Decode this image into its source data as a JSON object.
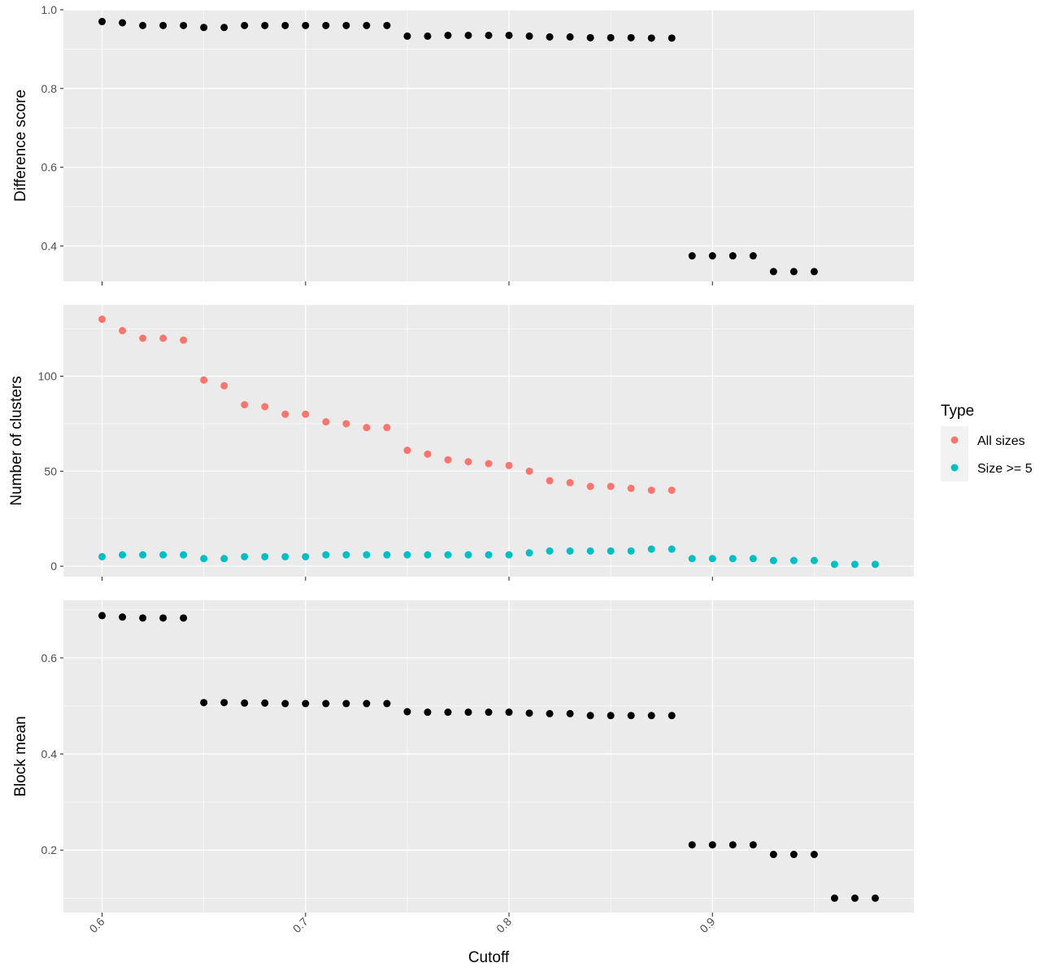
{
  "chart_data": {
    "type": "scatter",
    "xlabel": "Cutoff",
    "xlim": [
      0.581,
      0.999
    ],
    "x_ticks": [
      "0.6",
      "0.7",
      "0.8",
      "0.9"
    ],
    "x_tick_values": [
      0.6,
      0.7,
      0.8,
      0.9
    ],
    "x_minor_breaks": [
      0.65,
      0.75,
      0.85,
      0.95
    ],
    "grid": true,
    "legend": {
      "title": "Type",
      "position": "right",
      "entries": [
        {
          "label": "All sizes",
          "color": "#F8766D"
        },
        {
          "label": "Size >= 5",
          "color": "#00BFC4"
        }
      ]
    },
    "panels": [
      {
        "ylabel": "Difference score",
        "ylim": [
          0.31,
          1.0
        ],
        "y_ticks": [
          "0.4",
          "0.6",
          "0.8",
          "1.0"
        ],
        "y_tick_values": [
          0.4,
          0.6,
          0.8,
          1.0
        ],
        "y_minor_breaks": [
          0.3,
          0.5,
          0.7,
          0.9
        ],
        "series": [
          {
            "color": "#000000",
            "x": [
              0.6,
              0.61,
              0.62,
              0.63,
              0.64,
              0.65,
              0.66,
              0.67,
              0.68,
              0.69,
              0.7,
              0.71,
              0.72,
              0.73,
              0.74,
              0.75,
              0.76,
              0.77,
              0.78,
              0.79,
              0.8,
              0.81,
              0.82,
              0.83,
              0.84,
              0.85,
              0.86,
              0.87,
              0.88,
              0.89,
              0.9,
              0.91,
              0.92,
              0.93,
              0.94,
              0.95
            ],
            "y": [
              0.97,
              0.967,
              0.96,
              0.96,
              0.96,
              0.955,
              0.955,
              0.96,
              0.96,
              0.96,
              0.96,
              0.96,
              0.96,
              0.96,
              0.96,
              0.933,
              0.933,
              0.935,
              0.935,
              0.935,
              0.935,
              0.933,
              0.931,
              0.931,
              0.929,
              0.929,
              0.929,
              0.928,
              0.928,
              0.375,
              0.375,
              0.375,
              0.375,
              0.335,
              0.335,
              0.335
            ]
          }
        ]
      },
      {
        "ylabel": "Number of clusters",
        "ylim": [
          -5.5,
          137.5
        ],
        "y_ticks": [
          "0",
          "50",
          "100"
        ],
        "y_tick_values": [
          0,
          50,
          100
        ],
        "y_minor_breaks": [
          25,
          75,
          125
        ],
        "series": [
          {
            "name": "All sizes",
            "color": "#F8766D",
            "x": [
              0.6,
              0.61,
              0.62,
              0.63,
              0.64,
              0.65,
              0.66,
              0.67,
              0.68,
              0.69,
              0.7,
              0.71,
              0.72,
              0.73,
              0.74,
              0.75,
              0.76,
              0.77,
              0.78,
              0.79,
              0.8,
              0.81,
              0.82,
              0.83,
              0.84,
              0.85,
              0.86,
              0.87,
              0.88
            ],
            "y": [
              130,
              124,
              120,
              120,
              119,
              98,
              95,
              85,
              84,
              80,
              80,
              76,
              75,
              73,
              73,
              61,
              59,
              56,
              55,
              54,
              53,
              50,
              45,
              44,
              42,
              42,
              41,
              40,
              40
            ]
          },
          {
            "name": "Size >= 5",
            "color": "#00BFC4",
            "x": [
              0.6,
              0.61,
              0.62,
              0.63,
              0.64,
              0.65,
              0.66,
              0.67,
              0.68,
              0.69,
              0.7,
              0.71,
              0.72,
              0.73,
              0.74,
              0.75,
              0.76,
              0.77,
              0.78,
              0.79,
              0.8,
              0.81,
              0.82,
              0.83,
              0.84,
              0.85,
              0.86,
              0.87,
              0.88,
              0.89,
              0.9,
              0.91,
              0.92,
              0.93,
              0.94,
              0.95,
              0.96,
              0.97,
              0.98
            ],
            "y": [
              5,
              6,
              6,
              6,
              6,
              4,
              4,
              5,
              5,
              5,
              5,
              6,
              6,
              6,
              6,
              6,
              6,
              6,
              6,
              6,
              6,
              7,
              8,
              8,
              8,
              8,
              8,
              9,
              9,
              4,
              4,
              4,
              4,
              3,
              3,
              3,
              1,
              1,
              1
            ]
          }
        ]
      },
      {
        "ylabel": "Block mean",
        "ylim": [
          0.07,
          0.72
        ],
        "y_ticks": [
          "0.2",
          "0.4",
          "0.6"
        ],
        "y_tick_values": [
          0.2,
          0.4,
          0.6
        ],
        "y_minor_breaks": [
          0.1,
          0.3,
          0.5,
          0.7
        ],
        "series": [
          {
            "color": "#000000",
            "x": [
              0.6,
              0.61,
              0.62,
              0.63,
              0.64,
              0.65,
              0.66,
              0.67,
              0.68,
              0.69,
              0.7,
              0.71,
              0.72,
              0.73,
              0.74,
              0.75,
              0.76,
              0.77,
              0.78,
              0.79,
              0.8,
              0.81,
              0.82,
              0.83,
              0.84,
              0.85,
              0.86,
              0.87,
              0.88,
              0.89,
              0.9,
              0.91,
              0.92,
              0.93,
              0.94,
              0.95,
              0.96,
              0.97,
              0.98
            ],
            "y": [
              0.688,
              0.685,
              0.683,
              0.683,
              0.683,
              0.507,
              0.507,
              0.506,
              0.506,
              0.505,
              0.505,
              0.505,
              0.505,
              0.505,
              0.505,
              0.488,
              0.487,
              0.487,
              0.487,
              0.487,
              0.487,
              0.485,
              0.484,
              0.484,
              0.48,
              0.48,
              0.48,
              0.48,
              0.48,
              0.211,
              0.211,
              0.211,
              0.211,
              0.191,
              0.191,
              0.191,
              0.1,
              0.1,
              0.1
            ]
          }
        ]
      }
    ]
  }
}
